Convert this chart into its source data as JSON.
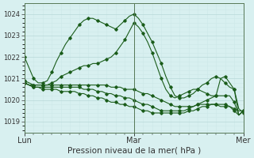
{
  "title": "Pression niveau de la mer( hPa )",
  "bg_color": "#d8f0f0",
  "grid_major_color": "#b8d8d8",
  "grid_minor_color": "#cce8e8",
  "line_color": "#1a5c1a",
  "ylim": [
    1018.5,
    1024.5
  ],
  "yticks": [
    1019,
    1020,
    1021,
    1022,
    1023,
    1024
  ],
  "xtick_labels": [
    "Lun",
    "",
    "Mar",
    "",
    "Mer"
  ],
  "xtick_positions": [
    0,
    12,
    24,
    36,
    48
  ],
  "vline_positions": [
    0,
    24,
    48
  ],
  "n_points": 49,
  "series": [
    [
      1022.0,
      1021.5,
      1021.0,
      1020.8,
      1020.8,
      1020.9,
      1021.3,
      1021.8,
      1022.2,
      1022.6,
      1022.9,
      1023.2,
      1023.5,
      1023.7,
      1023.8,
      1023.8,
      1023.7,
      1023.6,
      1023.5,
      1023.4,
      1023.3,
      1023.5,
      1023.7,
      1023.9,
      1024.0,
      1023.8,
      1023.5,
      1023.1,
      1022.7,
      1022.2,
      1021.7,
      1021.1,
      1020.6,
      1020.2,
      1020.1,
      1020.1,
      1020.2,
      1020.3,
      1020.5,
      1020.7,
      1020.8,
      1021.0,
      1021.1,
      1021.0,
      1020.8,
      1020.6,
      1020.5,
      1019.6,
      1019.4
    ],
    [
      1020.9,
      1020.8,
      1020.7,
      1020.7,
      1020.7,
      1020.7,
      1020.8,
      1020.9,
      1021.1,
      1021.2,
      1021.3,
      1021.4,
      1021.5,
      1021.6,
      1021.6,
      1021.7,
      1021.7,
      1021.8,
      1021.9,
      1022.0,
      1022.2,
      1022.5,
      1022.8,
      1023.2,
      1023.6,
      1023.4,
      1023.1,
      1022.7,
      1022.2,
      1021.6,
      1021.0,
      1020.5,
      1020.2,
      1020.1,
      1020.2,
      1020.3,
      1020.4,
      1020.5,
      1020.5,
      1020.4,
      1020.3,
      1020.2,
      1020.2,
      1020.2,
      1020.2,
      1020.2,
      1019.9,
      1019.3,
      1019.5
    ],
    [
      1020.8,
      1020.7,
      1020.7,
      1020.7,
      1020.7,
      1020.7,
      1020.7,
      1020.7,
      1020.7,
      1020.7,
      1020.7,
      1020.7,
      1020.7,
      1020.7,
      1020.7,
      1020.7,
      1020.7,
      1020.7,
      1020.7,
      1020.6,
      1020.6,
      1020.6,
      1020.5,
      1020.5,
      1020.5,
      1020.4,
      1020.3,
      1020.3,
      1020.2,
      1020.1,
      1020.0,
      1019.9,
      1019.8,
      1019.7,
      1019.7,
      1019.7,
      1019.7,
      1019.7,
      1019.8,
      1019.8,
      1019.8,
      1019.8,
      1019.8,
      1019.7,
      1019.7,
      1019.7,
      1019.6,
      1019.5,
      1019.5
    ],
    [
      1020.8,
      1020.7,
      1020.6,
      1020.6,
      1020.6,
      1020.6,
      1020.6,
      1020.6,
      1020.6,
      1020.6,
      1020.6,
      1020.6,
      1020.6,
      1020.5,
      1020.5,
      1020.5,
      1020.4,
      1020.4,
      1020.3,
      1020.3,
      1020.2,
      1020.2,
      1020.1,
      1020.1,
      1020.0,
      1019.9,
      1019.8,
      1019.8,
      1019.7,
      1019.6,
      1019.5,
      1019.5,
      1019.5,
      1019.5,
      1019.5,
      1019.5,
      1019.6,
      1019.7,
      1019.8,
      1019.9,
      1020.0,
      1020.1,
      1020.2,
      1021.0,
      1021.1,
      1020.8,
      1020.5,
      1019.3,
      1019.5
    ],
    [
      1020.8,
      1020.7,
      1020.6,
      1020.6,
      1020.5,
      1020.5,
      1020.5,
      1020.5,
      1020.4,
      1020.4,
      1020.4,
      1020.4,
      1020.3,
      1020.3,
      1020.2,
      1020.2,
      1020.1,
      1020.1,
      1020.0,
      1019.9,
      1019.9,
      1019.8,
      1019.8,
      1019.7,
      1019.7,
      1019.6,
      1019.5,
      1019.5,
      1019.4,
      1019.4,
      1019.4,
      1019.4,
      1019.4,
      1019.4,
      1019.4,
      1019.4,
      1019.5,
      1019.5,
      1019.6,
      1019.7,
      1019.7,
      1019.8,
      1019.8,
      1019.8,
      1019.8,
      1019.7,
      1019.5,
      1019.3,
      1019.5
    ]
  ]
}
